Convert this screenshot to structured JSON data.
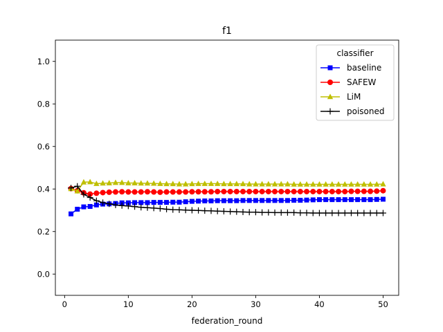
{
  "chart_data": {
    "type": "line",
    "title": "f1",
    "xlabel": "federation_round",
    "ylabel": "",
    "xlim": [
      -1.45,
      52.45
    ],
    "ylim": [
      -0.1,
      1.1
    ],
    "xticks": [
      0,
      10,
      20,
      30,
      40,
      50
    ],
    "yticks": [
      0.0,
      0.2,
      0.4,
      0.6,
      0.8,
      1.0
    ],
    "xtick_labels": [
      "0",
      "10",
      "20",
      "30",
      "40",
      "50"
    ],
    "ytick_labels": [
      "0.0",
      "0.2",
      "0.4",
      "0.6",
      "0.8",
      "1.0"
    ],
    "legend": {
      "title": "classifier",
      "position": "top-right"
    },
    "x": [
      1,
      2,
      3,
      4,
      5,
      6,
      7,
      8,
      9,
      10,
      11,
      12,
      13,
      14,
      15,
      16,
      17,
      18,
      19,
      20,
      21,
      22,
      23,
      24,
      25,
      26,
      27,
      28,
      29,
      30,
      31,
      32,
      33,
      34,
      35,
      36,
      37,
      38,
      39,
      40,
      41,
      42,
      43,
      44,
      45,
      46,
      47,
      48,
      49,
      50
    ],
    "series": [
      {
        "name": "baseline",
        "color": "#0000ff",
        "marker": "square",
        "values": [
          0.283,
          0.305,
          0.316,
          0.318,
          0.325,
          0.329,
          0.33,
          0.332,
          0.335,
          0.335,
          0.336,
          0.336,
          0.336,
          0.337,
          0.337,
          0.337,
          0.338,
          0.338,
          0.34,
          0.342,
          0.343,
          0.344,
          0.344,
          0.345,
          0.345,
          0.345,
          0.345,
          0.346,
          0.346,
          0.346,
          0.346,
          0.346,
          0.346,
          0.346,
          0.346,
          0.347,
          0.347,
          0.348,
          0.349,
          0.35,
          0.35,
          0.35,
          0.35,
          0.35,
          0.35,
          0.35,
          0.35,
          0.35,
          0.351,
          0.352
        ]
      },
      {
        "name": "SAFEW",
        "color": "#ff0000",
        "marker": "circle",
        "values": [
          0.402,
          0.392,
          0.382,
          0.376,
          0.38,
          0.383,
          0.385,
          0.386,
          0.387,
          0.386,
          0.386,
          0.386,
          0.387,
          0.386,
          0.385,
          0.386,
          0.386,
          0.386,
          0.386,
          0.387,
          0.387,
          0.387,
          0.387,
          0.388,
          0.388,
          0.388,
          0.388,
          0.388,
          0.388,
          0.388,
          0.388,
          0.388,
          0.388,
          0.388,
          0.388,
          0.388,
          0.388,
          0.388,
          0.388,
          0.388,
          0.388,
          0.388,
          0.388,
          0.388,
          0.389,
          0.389,
          0.389,
          0.389,
          0.39,
          0.392
        ]
      },
      {
        "name": "LiM",
        "color": "#bfbf00",
        "marker": "triangle",
        "values": [
          0.401,
          0.39,
          0.432,
          0.433,
          0.425,
          0.427,
          0.428,
          0.43,
          0.43,
          0.428,
          0.428,
          0.427,
          0.427,
          0.426,
          0.425,
          0.424,
          0.424,
          0.423,
          0.423,
          0.424,
          0.425,
          0.425,
          0.425,
          0.425,
          0.424,
          0.424,
          0.424,
          0.424,
          0.423,
          0.423,
          0.423,
          0.423,
          0.423,
          0.423,
          0.423,
          0.422,
          0.422,
          0.422,
          0.422,
          0.422,
          0.422,
          0.422,
          0.422,
          0.422,
          0.422,
          0.422,
          0.422,
          0.422,
          0.422,
          0.423
        ]
      },
      {
        "name": "poisoned",
        "color": "#000000",
        "marker": "plus",
        "values": [
          0.405,
          0.413,
          0.375,
          0.36,
          0.345,
          0.336,
          0.33,
          0.325,
          0.322,
          0.32,
          0.317,
          0.314,
          0.312,
          0.31,
          0.308,
          0.305,
          0.303,
          0.302,
          0.301,
          0.3,
          0.299,
          0.298,
          0.297,
          0.296,
          0.295,
          0.294,
          0.293,
          0.292,
          0.291,
          0.291,
          0.29,
          0.29,
          0.289,
          0.289,
          0.289,
          0.289,
          0.288,
          0.288,
          0.287,
          0.287,
          0.287,
          0.287,
          0.287,
          0.287,
          0.287,
          0.287,
          0.287,
          0.287,
          0.287,
          0.287
        ]
      }
    ]
  }
}
